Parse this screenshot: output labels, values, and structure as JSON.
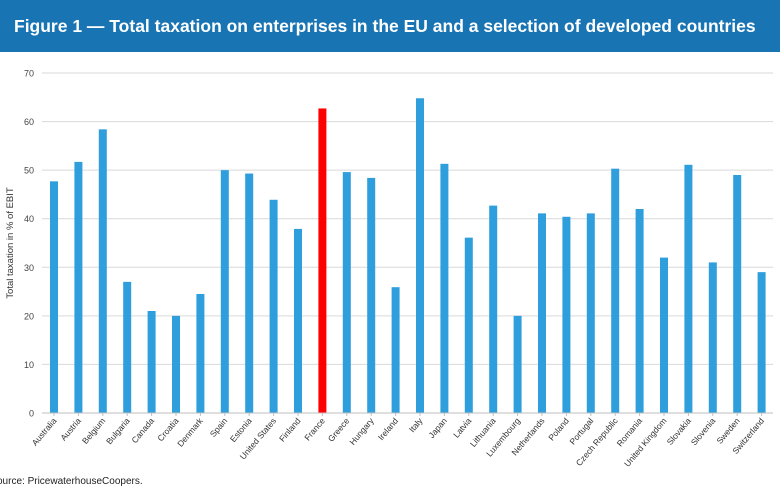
{
  "header": {
    "title": "Figure 1 — Total taxation on enterprises in the EU and a selection of developed countries"
  },
  "footer": {
    "source": "ource: PricewaterhouseCoopers."
  },
  "colors": {
    "bar": "#2e9fdc",
    "highlight": "#ff0000",
    "header_bg": "#1874b3",
    "grid": "#d9d9d9"
  },
  "chart_data": {
    "type": "bar",
    "title": "Figure 1 — Total taxation on enterprises in the EU and a selection of developed countries",
    "xlabel": "",
    "ylabel": "Total taxation in % of EBIT",
    "ylim": [
      0,
      70
    ],
    "yticks": [
      0,
      10,
      20,
      30,
      40,
      50,
      60,
      70
    ],
    "grid": true,
    "highlight": "France",
    "categories": [
      "Australia",
      "Austria",
      "Belgium",
      "Bulgaria",
      "Canada",
      "Croatia",
      "Denmark",
      "Spain",
      "Estonia",
      "United States",
      "Finland",
      "France",
      "Greece",
      "Hungary",
      "Ireland",
      "Italy",
      "Japan",
      "Latvia",
      "Lithuania",
      "Luxembourg",
      "Netherlands",
      "Poland",
      "Portugal",
      "Czech Republic",
      "Romania",
      "United Kingdom",
      "Slovakia",
      "Slovenia",
      "Sweden",
      "Switzerland"
    ],
    "values": [
      47.7,
      51.7,
      58.4,
      27.0,
      21.0,
      20.0,
      24.5,
      50.0,
      49.3,
      43.9,
      37.9,
      62.7,
      49.6,
      48.4,
      25.9,
      64.8,
      51.3,
      36.1,
      42.7,
      20.0,
      41.1,
      40.4,
      41.1,
      50.3,
      42.0,
      32.0,
      51.1,
      31.0,
      49.0,
      29.0
    ]
  }
}
